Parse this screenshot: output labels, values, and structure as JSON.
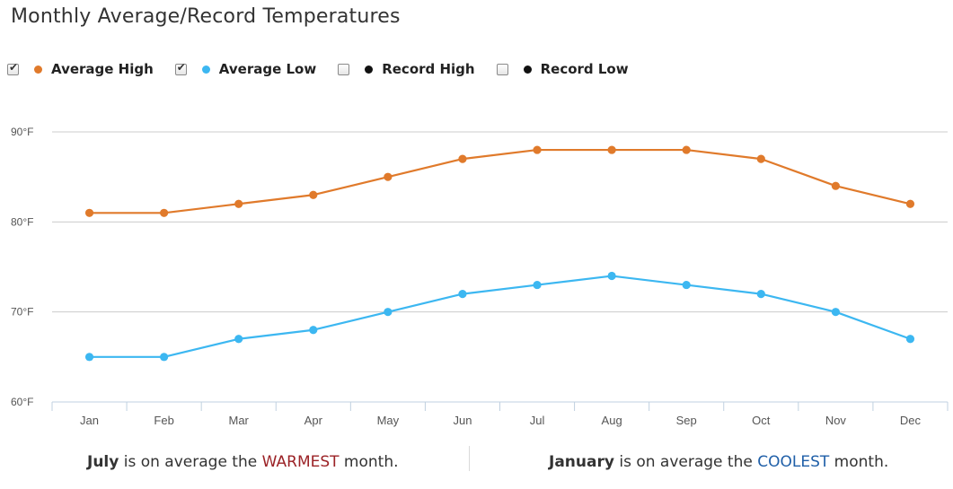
{
  "title": "Monthly Average/Record Temperatures",
  "legend": [
    {
      "label": "Average High",
      "color": "#e07a2b",
      "checked": true
    },
    {
      "label": "Average Low",
      "color": "#3cb7f1",
      "checked": true
    },
    {
      "label": "Record High",
      "color": "#111111",
      "checked": false
    },
    {
      "label": "Record Low",
      "color": "#111111",
      "checked": false
    }
  ],
  "chart_data": {
    "type": "line",
    "categories": [
      "Jan",
      "Feb",
      "Mar",
      "Apr",
      "May",
      "Jun",
      "Jul",
      "Aug",
      "Sep",
      "Oct",
      "Nov",
      "Dec"
    ],
    "series": [
      {
        "name": "Average High",
        "color": "#e07a2b",
        "values": [
          81,
          81,
          82,
          83,
          85,
          87,
          88,
          88,
          88,
          87,
          84,
          82
        ]
      },
      {
        "name": "Average Low",
        "color": "#3cb7f1",
        "values": [
          65,
          65,
          67,
          68,
          70,
          72,
          73,
          74,
          73,
          72,
          70,
          67
        ]
      }
    ],
    "yticks": [
      "60°F",
      "70°F",
      "80°F",
      "90°F"
    ],
    "ylim": [
      60,
      90
    ],
    "grid": true
  },
  "footer": {
    "warm": {
      "month": "July",
      "text1": " is on average the ",
      "word": "WARMEST",
      "text2": " month."
    },
    "cool": {
      "month": "January",
      "text1": " is on average the ",
      "word": "COOLEST",
      "text2": " month."
    }
  }
}
